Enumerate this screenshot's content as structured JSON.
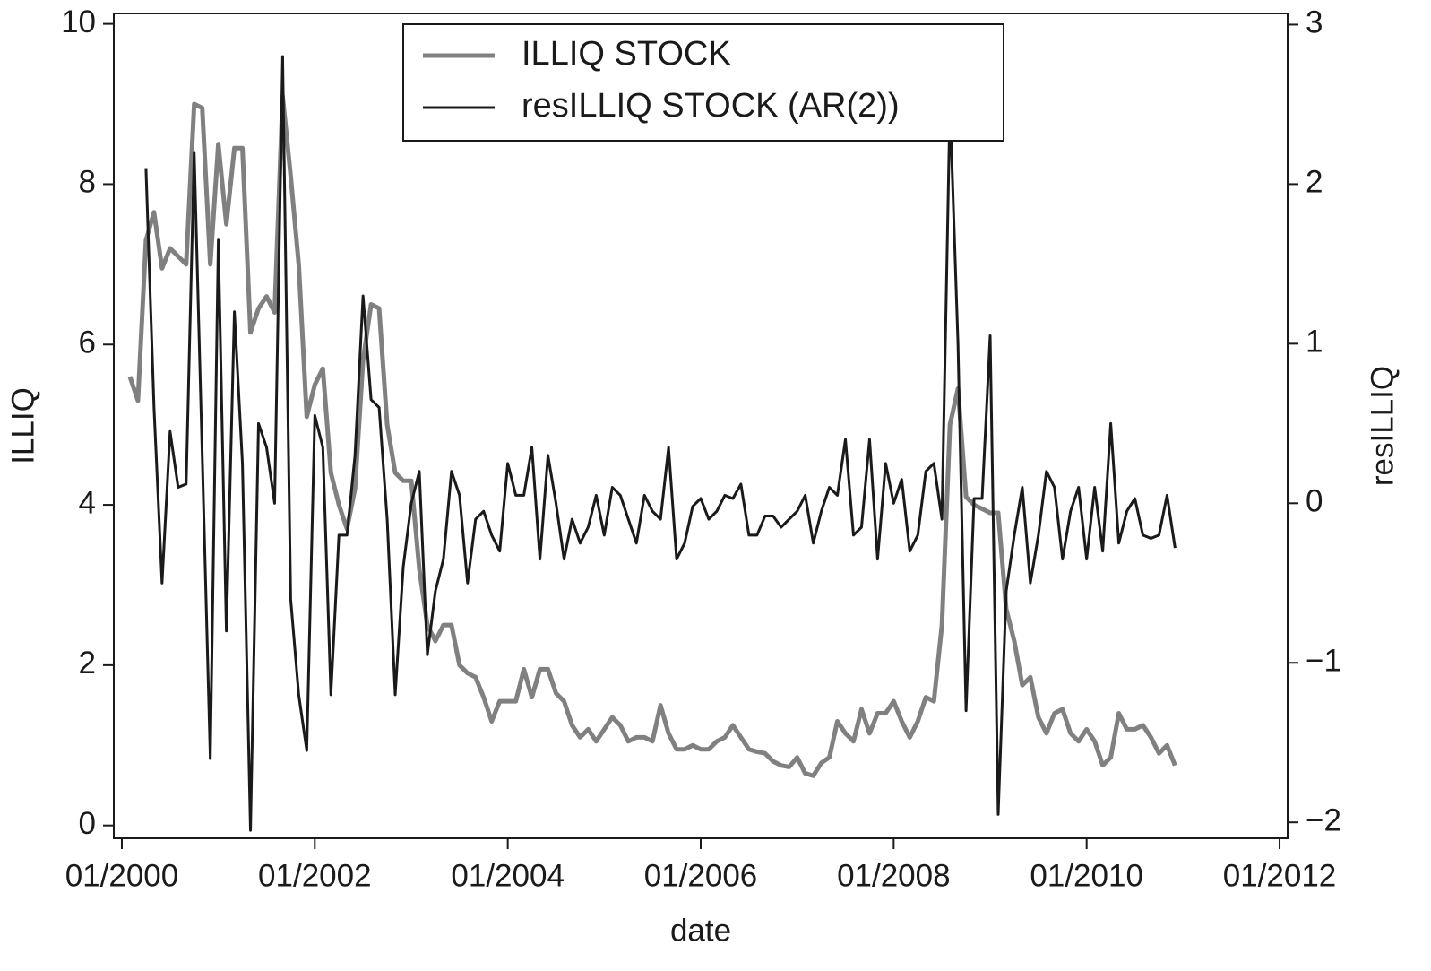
{
  "chart_data": {
    "type": "line",
    "xlabel": "date",
    "ylabel": "ILLIQ",
    "y2label": "resILLIQ",
    "x": [
      "02/2000",
      "03/2000",
      "04/2000",
      "05/2000",
      "06/2000",
      "07/2000",
      "08/2000",
      "09/2000",
      "10/2000",
      "11/2000",
      "12/2000",
      "01/2001",
      "02/2001",
      "03/2001",
      "04/2001",
      "05/2001",
      "06/2001",
      "07/2001",
      "08/2001",
      "09/2001",
      "10/2001",
      "11/2001",
      "12/2001",
      "01/2002",
      "02/2002",
      "03/2002",
      "04/2002",
      "05/2002",
      "06/2002",
      "07/2002",
      "08/2002",
      "09/2002",
      "10/2002",
      "11/2002",
      "12/2002",
      "01/2003",
      "02/2003",
      "03/2003",
      "04/2003",
      "05/2003",
      "06/2003",
      "07/2003",
      "08/2003",
      "09/2003",
      "10/2003",
      "11/2003",
      "12/2003",
      "01/2004",
      "02/2004",
      "03/2004",
      "04/2004",
      "05/2004",
      "06/2004",
      "07/2004",
      "08/2004",
      "09/2004",
      "10/2004",
      "11/2004",
      "12/2004",
      "01/2005",
      "02/2005",
      "03/2005",
      "04/2005",
      "05/2005",
      "06/2005",
      "07/2005",
      "08/2005",
      "09/2005",
      "10/2005",
      "11/2005",
      "12/2005",
      "01/2006",
      "02/2006",
      "03/2006",
      "04/2006",
      "05/2006",
      "06/2006",
      "07/2006",
      "08/2006",
      "09/2006",
      "10/2006",
      "11/2006",
      "12/2006",
      "01/2007",
      "02/2007",
      "03/2007",
      "04/2007",
      "05/2007",
      "06/2007",
      "07/2007",
      "08/2007",
      "09/2007",
      "10/2007",
      "11/2007",
      "12/2007",
      "01/2008",
      "02/2008",
      "03/2008",
      "04/2008",
      "05/2008",
      "06/2008",
      "07/2008",
      "08/2008",
      "09/2008",
      "10/2008",
      "11/2008",
      "12/2008",
      "01/2009",
      "02/2009",
      "03/2009",
      "04/2009",
      "05/2009",
      "06/2009",
      "07/2009",
      "08/2009",
      "09/2009",
      "10/2009",
      "11/2009",
      "12/2009",
      "01/2010",
      "02/2010",
      "03/2010",
      "04/2010",
      "05/2010",
      "06/2010",
      "07/2010",
      "08/2010",
      "09/2010",
      "10/2010",
      "11/2010",
      "12/2010"
    ],
    "series": [
      {
        "name": "ILLIQ STOCK",
        "color": "#808080",
        "values": [
          5.6,
          5.3,
          7.3,
          7.65,
          6.95,
          7.2,
          7.1,
          7.0,
          9.0,
          8.95,
          7.0,
          8.5,
          7.5,
          8.45,
          8.45,
          6.15,
          6.45,
          6.6,
          6.4,
          9.1,
          8.1,
          7.0,
          5.1,
          5.5,
          5.7,
          4.4,
          4.0,
          3.7,
          4.2,
          5.8,
          6.5,
          6.45,
          5.0,
          4.4,
          4.3,
          4.3,
          3.2,
          2.5,
          2.3,
          2.5,
          2.5,
          2.0,
          1.9,
          1.85,
          1.6,
          1.3,
          1.55,
          1.55,
          1.55,
          1.95,
          1.6,
          1.95,
          1.95,
          1.65,
          1.55,
          1.25,
          1.1,
          1.2,
          1.05,
          1.2,
          1.35,
          1.25,
          1.05,
          1.1,
          1.1,
          1.05,
          1.5,
          1.15,
          0.95,
          0.95,
          1.0,
          0.95,
          0.95,
          1.05,
          1.1,
          1.25,
          1.1,
          0.95,
          0.92,
          0.9,
          0.8,
          0.75,
          0.73,
          0.85,
          0.65,
          0.62,
          0.78,
          0.85,
          1.3,
          1.15,
          1.05,
          1.45,
          1.15,
          1.4,
          1.4,
          1.55,
          1.3,
          1.1,
          1.3,
          1.6,
          1.55,
          2.5,
          5.0,
          5.45,
          4.1,
          4.0,
          3.95,
          3.9,
          3.9,
          2.7,
          2.3,
          1.75,
          1.85,
          1.35,
          1.15,
          1.4,
          1.45,
          1.15,
          1.05,
          1.2,
          1.05,
          0.75,
          0.85,
          1.4,
          1.2,
          1.2,
          1.25,
          1.1,
          0.9,
          1.0,
          0.75
        ]
      },
      {
        "name": "resILLIQ STOCK (AR(2))",
        "color": "#1a1a1a",
        "axis": "y2",
        "values": [
          null,
          null,
          2.1,
          0.6,
          -0.5,
          0.45,
          0.1,
          0.12,
          2.2,
          0.3,
          -1.6,
          1.65,
          -0.8,
          1.2,
          0.25,
          -2.05,
          0.5,
          0.35,
          0.0,
          2.8,
          -0.6,
          -1.2,
          -1.55,
          0.55,
          0.35,
          -1.2,
          -0.2,
          -0.2,
          0.3,
          1.3,
          0.65,
          0.6,
          -0.1,
          -1.2,
          -0.4,
          0.0,
          0.2,
          -0.95,
          -0.55,
          -0.35,
          0.2,
          0.05,
          -0.5,
          -0.1,
          -0.05,
          -0.2,
          -0.3,
          0.25,
          0.05,
          0.05,
          0.35,
          -0.35,
          0.3,
          0.0,
          -0.35,
          -0.1,
          -0.25,
          -0.15,
          0.05,
          -0.2,
          0.1,
          0.05,
          -0.1,
          -0.25,
          0.05,
          -0.05,
          -0.1,
          0.35,
          -0.35,
          -0.25,
          -0.02,
          0.03,
          -0.1,
          -0.05,
          0.05,
          0.03,
          0.12,
          -0.2,
          -0.2,
          -0.08,
          -0.08,
          -0.15,
          -0.1,
          -0.05,
          0.05,
          -0.25,
          -0.05,
          0.1,
          0.05,
          0.4,
          -0.2,
          -0.15,
          0.4,
          -0.35,
          0.25,
          0.0,
          0.15,
          -0.3,
          -0.2,
          0.2,
          0.25,
          -0.1,
          2.5,
          1.0,
          -1.3,
          0.03,
          0.03,
          1.05,
          -1.95,
          -0.55,
          -0.2,
          0.1,
          -0.5,
          -0.2,
          0.2,
          0.1,
          -0.35,
          -0.05,
          0.1,
          -0.35,
          0.1,
          -0.3,
          0.5,
          -0.25,
          -0.05,
          0.03,
          -0.2,
          -0.22,
          -0.2,
          0.05,
          -0.28
        ]
      }
    ],
    "xlim": [
      "12/1999",
      "02/2012"
    ],
    "xticks": [
      "01/2000",
      "01/2002",
      "01/2004",
      "01/2006",
      "01/2008",
      "01/2010",
      "01/2012"
    ],
    "ylim": [
      -0.16,
      10.13
    ],
    "yticks": [
      0,
      2,
      4,
      6,
      8,
      10
    ],
    "y2lim": [
      -2.1,
      3.07
    ],
    "y2ticks": [
      {
        "value": -2,
        "label": "−2"
      },
      {
        "value": -1,
        "label": "−1"
      },
      0,
      1,
      2,
      3
    ],
    "legend": "upper center",
    "grid": false
  }
}
